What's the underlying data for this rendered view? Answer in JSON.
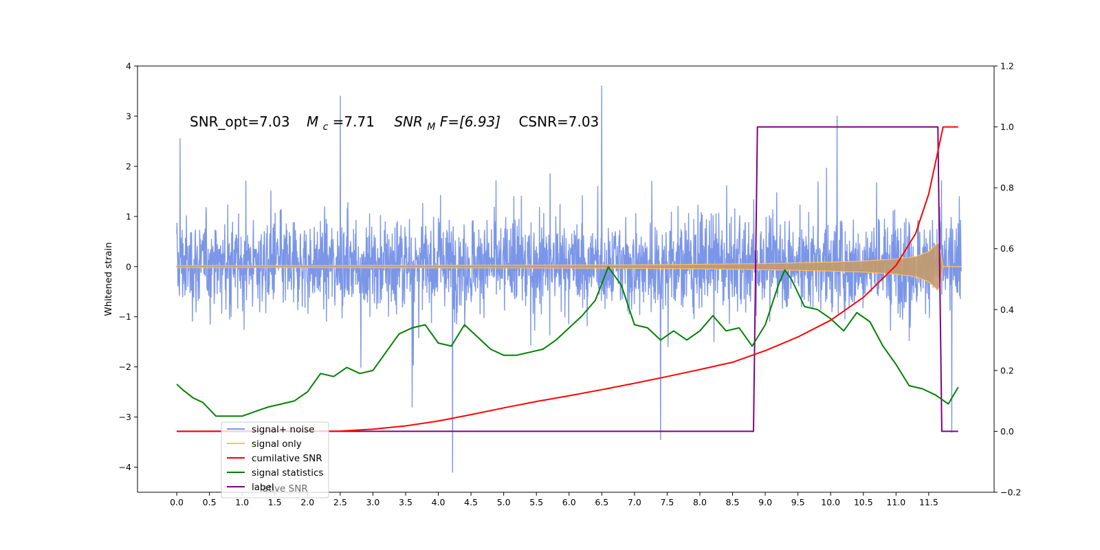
{
  "chart_data": {
    "type": "line",
    "xlabel": "",
    "ylabel": "Whitened strain",
    "xlim": [
      -0.6,
      12.5
    ],
    "ylim": [
      -4.5,
      4
    ],
    "y2lim": [
      -0.2,
      1.2
    ],
    "x_ticks": [
      "0.0",
      "0.5",
      "1.0",
      "1.5",
      "2.0",
      "2.5",
      "3.0",
      "3.5",
      "4.0",
      "4.5",
      "5.0",
      "5.5",
      "6.0",
      "6.5",
      "7.0",
      "7.5",
      "8.0",
      "8.5",
      "9.0",
      "9.5",
      "10.0",
      "10.5",
      "11.0",
      "11.5"
    ],
    "y_ticks": [
      "4",
      "3",
      "2",
      "1",
      "0",
      "−1",
      "−2",
      "−3",
      "−4"
    ],
    "y2_ticks": [
      "1.2",
      "1.0",
      "0.8",
      "0.6",
      "0.4",
      "0.2",
      "0.0",
      "−0.2"
    ],
    "annotation": {
      "snr_opt": "SNR_opt=7.03",
      "mc_label": "M",
      "mc_sub": "c",
      "mc_value": "=7.71",
      "snrmf_label": "SNR",
      "snrmf_sub": "M",
      "snrmf_value": "F=[6.93]",
      "csnr": "CSNR=7.03"
    },
    "legend": {
      "placement": "lower-left",
      "entries": [
        {
          "label": "signal+ noise",
          "color": "#7b96e8"
        },
        {
          "label": "signal only",
          "color": "#ffbf60"
        },
        {
          "label": "cumilative SNR",
          "color": "#ff0000"
        },
        {
          "label": "signal statistics",
          "color": "#008000"
        },
        {
          "label": "label",
          "color": "#800080"
        }
      ],
      "ghost_text": "lative SNR"
    },
    "series": [
      {
        "name": "signal+ noise",
        "axis": "left",
        "color": "#7b96e8",
        "x_range": [
          0.0,
          12.0
        ],
        "typical_band": [
          -1.6,
          1.7
        ],
        "peaks": [
          [
            0.05,
            2.55
          ],
          [
            2.5,
            3.4
          ],
          [
            3.6,
            -2.8
          ],
          [
            4.22,
            -4.1
          ],
          [
            6.5,
            3.6
          ],
          [
            7.4,
            -3.45
          ],
          [
            10.1,
            3.0
          ],
          [
            11.85,
            -3.3
          ]
        ]
      },
      {
        "name": "signal only",
        "axis": "left",
        "color": "#ffbf60",
        "x": [
          0,
          2,
          4,
          6,
          7,
          8,
          9,
          10,
          10.5,
          11,
          11.3,
          11.5,
          11.6,
          11.65,
          11.68,
          11.72
        ],
        "amplitude": [
          0.02,
          0.02,
          0.025,
          0.03,
          0.035,
          0.045,
          0.06,
          0.09,
          0.11,
          0.15,
          0.2,
          0.3,
          0.42,
          0.5,
          0.3,
          0.0
        ]
      },
      {
        "name": "cumilative SNR",
        "axis": "right",
        "color": "#ff0000",
        "x": [
          0,
          2.5,
          3.0,
          3.5,
          4.0,
          4.5,
          5.0,
          5.5,
          6.0,
          6.5,
          7.0,
          7.5,
          8.0,
          8.5,
          9.0,
          9.5,
          10.0,
          10.5,
          11.0,
          11.3,
          11.5,
          11.65,
          11.72,
          11.95
        ],
        "y": [
          0.0,
          0.001,
          0.007,
          0.018,
          0.034,
          0.055,
          0.077,
          0.098,
          0.117,
          0.137,
          0.158,
          0.18,
          0.203,
          0.227,
          0.265,
          0.31,
          0.365,
          0.44,
          0.545,
          0.65,
          0.78,
          0.93,
          1.0,
          1.0
        ]
      },
      {
        "name": "signal statistics",
        "axis": "right",
        "color": "#008000",
        "x": [
          0,
          0.1,
          0.25,
          0.4,
          0.6,
          0.8,
          1.0,
          1.2,
          1.4,
          1.6,
          1.8,
          2.0,
          2.2,
          2.4,
          2.6,
          2.8,
          3.0,
          3.2,
          3.4,
          3.6,
          3.8,
          4.0,
          4.2,
          4.4,
          4.6,
          4.8,
          5.0,
          5.2,
          5.4,
          5.6,
          5.8,
          6.0,
          6.2,
          6.4,
          6.6,
          6.8,
          7.0,
          7.2,
          7.4,
          7.6,
          7.8,
          8.0,
          8.2,
          8.4,
          8.6,
          8.8,
          9.0,
          9.2,
          9.3,
          9.4,
          9.6,
          9.8,
          10.0,
          10.2,
          10.4,
          10.6,
          10.8,
          11.0,
          11.2,
          11.4,
          11.6,
          11.8,
          11.95
        ],
        "y": [
          0.155,
          0.135,
          0.11,
          0.095,
          0.05,
          0.05,
          0.05,
          0.065,
          0.08,
          0.09,
          0.1,
          0.13,
          0.19,
          0.18,
          0.21,
          0.19,
          0.2,
          0.26,
          0.32,
          0.34,
          0.35,
          0.29,
          0.28,
          0.35,
          0.31,
          0.27,
          0.25,
          0.25,
          0.26,
          0.27,
          0.3,
          0.34,
          0.38,
          0.43,
          0.54,
          0.48,
          0.35,
          0.34,
          0.3,
          0.33,
          0.3,
          0.33,
          0.38,
          0.33,
          0.34,
          0.28,
          0.35,
          0.48,
          0.53,
          0.5,
          0.41,
          0.4,
          0.37,
          0.33,
          0.39,
          0.36,
          0.28,
          0.22,
          0.15,
          0.14,
          0.12,
          0.09,
          0.145
        ]
      },
      {
        "name": "label",
        "axis": "right",
        "color": "#800080",
        "x": [
          0,
          8.82,
          8.88,
          11.64,
          11.7,
          11.95
        ],
        "y": [
          0,
          0,
          1,
          1,
          0,
          0
        ]
      }
    ]
  }
}
